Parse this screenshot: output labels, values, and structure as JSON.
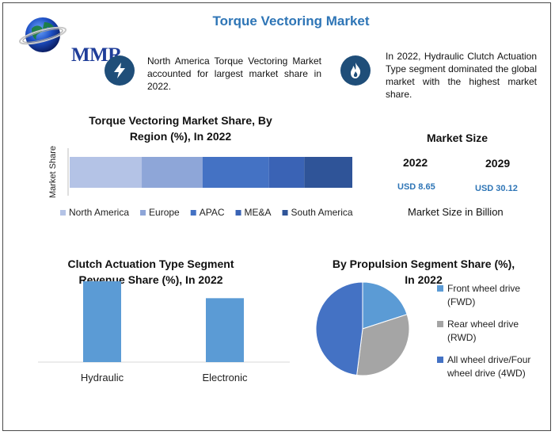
{
  "header": {
    "title": "Torque Vectoring Market",
    "logo_text": "MMR"
  },
  "facts": [
    {
      "icon": "lightning-icon",
      "text": "North America Torque Vectoring Market accounted for largest market share in 2022."
    },
    {
      "icon": "flame-icon",
      "text": "In 2022, Hydraulic Clutch Actuation Type segment dominated the global market with the highest market share."
    }
  ],
  "market_size": {
    "title": "Market Size",
    "year_2022": "2022",
    "year_2029": "2029",
    "value_2022": "USD 8.65",
    "value_2029": "USD 30.12",
    "unit_note": "Market Size in Billion"
  },
  "colors": {
    "north_america": "#b4c3e6",
    "europe": "#8ea6d8",
    "apac": "#4472c4",
    "mea": "#3a63b5",
    "south_america": "#2f5498",
    "bar_blue": "#5b9bd5",
    "pie_fwd": "#5b9bd5",
    "pie_rwd": "#a5a5a5",
    "pie_awd": "#4472c4",
    "icon_bg": "#1f4e79",
    "title_blue": "#2e75b6"
  },
  "chart_data": [
    {
      "type": "bar",
      "orientation": "horizontal-stacked",
      "title": "Torque Vectoring Market Share, By Region (%), In 2022",
      "ylabel": "Market Share",
      "categories": [
        "Market Share"
      ],
      "series": [
        {
          "name": "North America",
          "values": [
            25.5
          ]
        },
        {
          "name": "Europe",
          "values": [
            21.5
          ]
        },
        {
          "name": "APAC",
          "values": [
            23.5
          ]
        },
        {
          "name": "ME&A",
          "values": [
            12.5
          ]
        },
        {
          "name": "South America",
          "values": [
            17.0
          ]
        }
      ],
      "legend": "bottom"
    },
    {
      "type": "bar",
      "title": "Clutch Actuation Type Segment Revenue Share (%), In 2022",
      "categories": [
        "Hydraulic",
        "Electronic"
      ],
      "values": [
        56,
        44
      ],
      "ylim": [
        0,
        60
      ]
    },
    {
      "type": "pie",
      "title": "By Propulsion Segment Share (%), In 2022",
      "categories": [
        "Front wheel drive (FWD)",
        "Rear wheel drive (RWD)",
        "All wheel drive/Four wheel drive (4WD)"
      ],
      "values": [
        20,
        32,
        48
      ],
      "legend": "right"
    }
  ]
}
